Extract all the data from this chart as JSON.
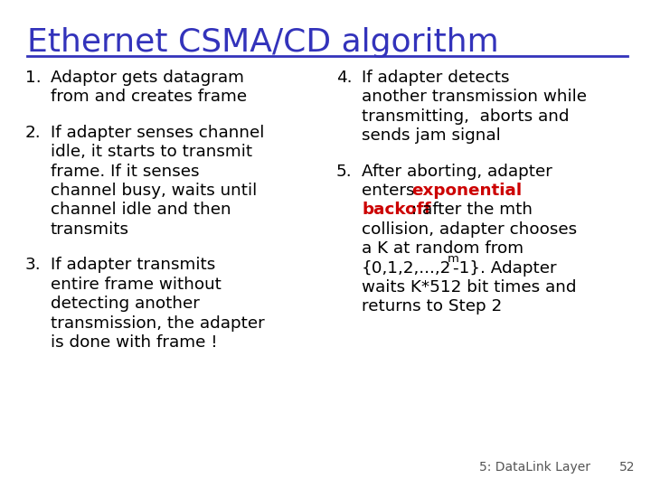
{
  "title": "Ethernet CSMA/CD algorithm",
  "title_color": "#3333BB",
  "bg_color": "#FFFFFF",
  "text_color": "#000000",
  "red_color": "#CC0000",
  "title_font_size": 26,
  "body_font_size": 13.2,
  "footer_font_size": 10,
  "left_items": [
    {
      "num": "1.",
      "lines": [
        "Adaptor gets datagram",
        "from and creates frame"
      ]
    },
    {
      "num": "2.",
      "lines": [
        "If adapter senses channel",
        "idle, it starts to transmit",
        "frame. If it senses",
        "channel busy, waits until",
        "channel idle and then",
        "transmits"
      ]
    },
    {
      "num": "3.",
      "lines": [
        "If adapter transmits",
        "entire frame without",
        "detecting another",
        "transmission, the adapter",
        "is done with frame !"
      ]
    }
  ],
  "right_item4_lines": [
    "If adapter detects",
    "another transmission while",
    "transmitting,  aborts and",
    "sends jam signal"
  ],
  "right_item5_lines": [
    [
      [
        "After aborting, adapter",
        "black",
        false,
        false
      ]
    ],
    [
      [
        "enters ",
        "black",
        false,
        false
      ],
      [
        "exponential",
        "red",
        true,
        false
      ]
    ],
    [
      [
        "backoff",
        "red",
        true,
        false
      ],
      [
        ": after the mth",
        "black",
        false,
        false
      ]
    ],
    [
      [
        "collision, adapter chooses",
        "black",
        false,
        false
      ]
    ],
    [
      [
        "a K at random from",
        "black",
        false,
        false
      ]
    ],
    [
      [
        "{0,1,2,...,2",
        "black",
        false,
        false
      ],
      [
        "m",
        "black",
        false,
        true
      ],
      [
        "-1}. Adapter",
        "black",
        false,
        false
      ]
    ],
    [
      [
        "waits K*512 bit times and",
        "black",
        false,
        false
      ]
    ],
    [
      [
        "returns to Step 2",
        "black",
        false,
        false
      ]
    ]
  ],
  "footer_text": "5: DataLink Layer",
  "footer_num": "52"
}
